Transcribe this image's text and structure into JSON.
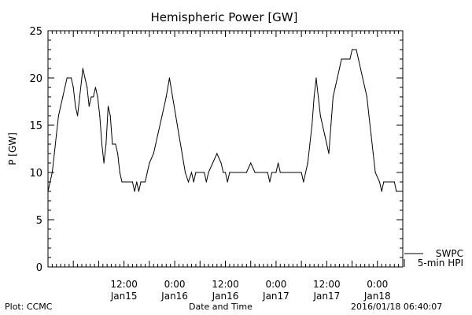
{
  "chart_data": {
    "type": "line",
    "title": "Hemispheric Power [GW]",
    "xlabel": "Date and Time",
    "ylabel": "P [GW]",
    "ylim": [
      0,
      25
    ],
    "yticks": [
      0,
      5,
      10,
      15,
      20,
      25
    ],
    "x_start": "2016-01-14 18:00",
    "x_end": "2016-01-18 06:00",
    "x_unit": "hours",
    "xticks": [
      {
        "t": "2016-01-15 12:00",
        "time": "12:00",
        "date": "Jan15"
      },
      {
        "t": "2016-01-16 00:00",
        "time": "0:00",
        "date": "Jan16"
      },
      {
        "t": "2016-01-16 12:00",
        "time": "12:00",
        "date": "Jan16"
      },
      {
        "t": "2016-01-17 00:00",
        "time": "0:00",
        "date": "Jan17"
      },
      {
        "t": "2016-01-17 12:00",
        "time": "12:00",
        "date": "Jan17"
      },
      {
        "t": "2016-01-18 00:00",
        "time": "0:00",
        "date": "Jan18"
      }
    ],
    "series": [
      {
        "name": "SWPC",
        "values": []
      },
      {
        "name": "5-min HPI",
        "points": [
          [
            "2016-01-14 18:00",
            8
          ],
          [
            "2016-01-14 18:30",
            9
          ],
          [
            "2016-01-14 19:00",
            10
          ],
          [
            "2016-01-14 19:30",
            12
          ],
          [
            "2016-01-14 20:00",
            14
          ],
          [
            "2016-01-14 20:30",
            16
          ],
          [
            "2016-01-14 21:00",
            17
          ],
          [
            "2016-01-14 21:30",
            18
          ],
          [
            "2016-01-14 22:00",
            19
          ],
          [
            "2016-01-14 22:30",
            20
          ],
          [
            "2016-01-14 23:30",
            20
          ],
          [
            "2016-01-15 00:00",
            19
          ],
          [
            "2016-01-15 00:30",
            17
          ],
          [
            "2016-01-15 01:00",
            16
          ],
          [
            "2016-01-15 01:30",
            18
          ],
          [
            "2016-01-15 02:00",
            20
          ],
          [
            "2016-01-15 02:15",
            21
          ],
          [
            "2016-01-15 02:45",
            20
          ],
          [
            "2016-01-15 03:15",
            19
          ],
          [
            "2016-01-15 03:45",
            17
          ],
          [
            "2016-01-15 04:15",
            18
          ],
          [
            "2016-01-15 04:45",
            18
          ],
          [
            "2016-01-15 05:15",
            19
          ],
          [
            "2016-01-15 05:45",
            18
          ],
          [
            "2016-01-15 06:15",
            16
          ],
          [
            "2016-01-15 06:45",
            13
          ],
          [
            "2016-01-15 07:15",
            11
          ],
          [
            "2016-01-15 07:45",
            13
          ],
          [
            "2016-01-15 08:15",
            17
          ],
          [
            "2016-01-15 08:45",
            16
          ],
          [
            "2016-01-15 09:15",
            13
          ],
          [
            "2016-01-15 10:00",
            13
          ],
          [
            "2016-01-15 10:30",
            12
          ],
          [
            "2016-01-15 11:00",
            10
          ],
          [
            "2016-01-15 11:30",
            9
          ],
          [
            "2016-01-15 14:00",
            9
          ],
          [
            "2016-01-15 14:30",
            8
          ],
          [
            "2016-01-15 15:00",
            9
          ],
          [
            "2016-01-15 15:30",
            8
          ],
          [
            "2016-01-15 16:00",
            9
          ],
          [
            "2016-01-15 17:00",
            9
          ],
          [
            "2016-01-15 17:30",
            10
          ],
          [
            "2016-01-15 18:00",
            11
          ],
          [
            "2016-01-15 19:00",
            12
          ],
          [
            "2016-01-15 20:00",
            14
          ],
          [
            "2016-01-15 21:00",
            16
          ],
          [
            "2016-01-15 22:00",
            18
          ],
          [
            "2016-01-15 22:45",
            20
          ],
          [
            "2016-01-15 23:30",
            18
          ],
          [
            "2016-01-16 00:15",
            16
          ],
          [
            "2016-01-16 01:00",
            14
          ],
          [
            "2016-01-16 01:45",
            12
          ],
          [
            "2016-01-16 02:30",
            10
          ],
          [
            "2016-01-16 03:15",
            9
          ],
          [
            "2016-01-16 04:00",
            10
          ],
          [
            "2016-01-16 04:30",
            9
          ],
          [
            "2016-01-16 05:00",
            10
          ],
          [
            "2016-01-16 07:00",
            10
          ],
          [
            "2016-01-16 07:30",
            9
          ],
          [
            "2016-01-16 08:00",
            10
          ],
          [
            "2016-01-16 09:00",
            11
          ],
          [
            "2016-01-16 10:00",
            12
          ],
          [
            "2016-01-16 11:00",
            11
          ],
          [
            "2016-01-16 11:30",
            10
          ],
          [
            "2016-01-16 12:00",
            10
          ],
          [
            "2016-01-16 12:30",
            9
          ],
          [
            "2016-01-16 13:00",
            10
          ],
          [
            "2016-01-16 17:00",
            10
          ],
          [
            "2016-01-16 18:00",
            11
          ],
          [
            "2016-01-16 19:00",
            10
          ],
          [
            "2016-01-16 22:00",
            10
          ],
          [
            "2016-01-16 22:30",
            9
          ],
          [
            "2016-01-16 23:00",
            10
          ],
          [
            "2016-01-17 00:00",
            10
          ],
          [
            "2016-01-17 00:30",
            11
          ],
          [
            "2016-01-17 01:00",
            10
          ],
          [
            "2016-01-17 06:00",
            10
          ],
          [
            "2016-01-17 06:30",
            9
          ],
          [
            "2016-01-17 07:00",
            10
          ],
          [
            "2016-01-17 07:30",
            11
          ],
          [
            "2016-01-17 08:00",
            13
          ],
          [
            "2016-01-17 08:30",
            15
          ],
          [
            "2016-01-17 09:00",
            18
          ],
          [
            "2016-01-17 09:30",
            20
          ],
          [
            "2016-01-17 10:00",
            18
          ],
          [
            "2016-01-17 10:30",
            16
          ],
          [
            "2016-01-17 11:00",
            15
          ],
          [
            "2016-01-17 11:30",
            14
          ],
          [
            "2016-01-17 12:00",
            13
          ],
          [
            "2016-01-17 12:30",
            12
          ],
          [
            "2016-01-17 13:00",
            15
          ],
          [
            "2016-01-17 13:30",
            18
          ],
          [
            "2016-01-17 14:00",
            19
          ],
          [
            "2016-01-17 14:30",
            20
          ],
          [
            "2016-01-17 15:00",
            21
          ],
          [
            "2016-01-17 15:30",
            22
          ],
          [
            "2016-01-17 16:30",
            22
          ],
          [
            "2016-01-17 17:30",
            22
          ],
          [
            "2016-01-17 18:00",
            23
          ],
          [
            "2016-01-17 19:00",
            23
          ],
          [
            "2016-01-17 19:30",
            22
          ],
          [
            "2016-01-17 20:30",
            20
          ],
          [
            "2016-01-17 21:30",
            18
          ],
          [
            "2016-01-17 22:00",
            16
          ],
          [
            "2016-01-17 22:30",
            14
          ],
          [
            "2016-01-17 23:00",
            12
          ],
          [
            "2016-01-17 23:30",
            10
          ],
          [
            "2016-01-18 00:30",
            9
          ],
          [
            "2016-01-18 01:00",
            8
          ],
          [
            "2016-01-18 01:30",
            9
          ],
          [
            "2016-01-18 04:00",
            9
          ],
          [
            "2016-01-18 04:30",
            8
          ],
          [
            "2016-01-18 06:00",
            8
          ]
        ]
      }
    ],
    "grid": false,
    "legend_position": "bottom-right"
  },
  "footer": {
    "left": "Plot: CCMC",
    "center": "Date and Time",
    "right": "2016/01/18 06:40:07"
  }
}
